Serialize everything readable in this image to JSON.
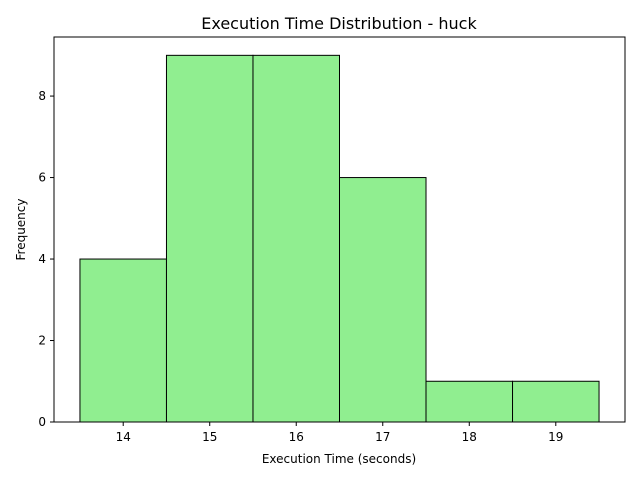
{
  "chart_data": {
    "type": "bar",
    "title": "Execution Time Distribution - huck",
    "xlabel": "Execution Time (seconds)",
    "ylabel": "Frequency",
    "bins": [
      {
        "start": 13.5,
        "end": 14.5,
        "count": 4
      },
      {
        "start": 14.5,
        "end": 15.5,
        "count": 9
      },
      {
        "start": 15.5,
        "end": 16.5,
        "count": 9
      },
      {
        "start": 16.5,
        "end": 17.5,
        "count": 6
      },
      {
        "start": 17.5,
        "end": 18.5,
        "count": 1
      },
      {
        "start": 18.5,
        "end": 19.5,
        "count": 1
      }
    ],
    "xlim": [
      13.2,
      19.8
    ],
    "ylim": [
      0,
      9.45
    ],
    "xticks": [
      14,
      15,
      16,
      17,
      18,
      19
    ],
    "yticks": [
      0,
      2,
      4,
      6,
      8
    ],
    "bar_color": "#90EE90",
    "edge_color": "#000000",
    "grid": false,
    "legend": "none"
  }
}
